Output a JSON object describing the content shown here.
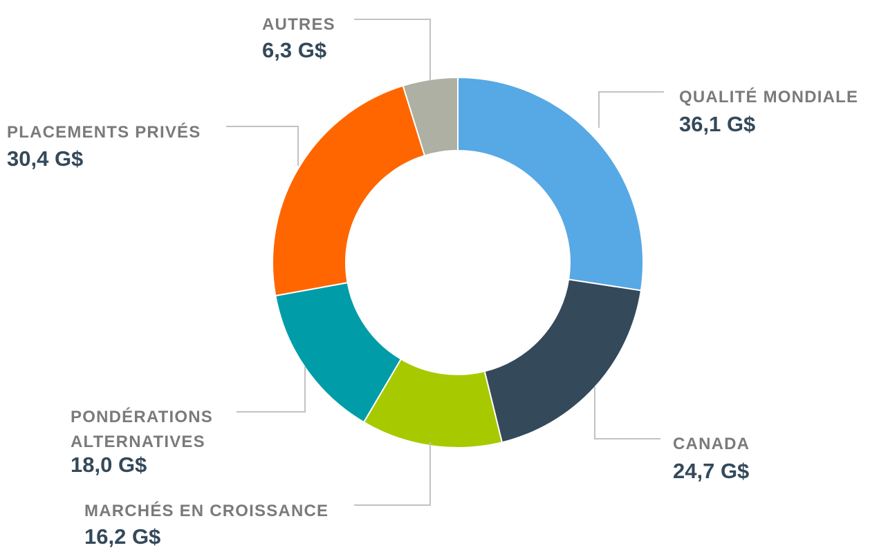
{
  "chart_data": {
    "type": "pie",
    "variant": "donut",
    "title": "",
    "legend": "none",
    "slices": [
      {
        "label": "QUALITÉ MONDIALE",
        "value": 36.1,
        "value_label": "36,1 G$",
        "color": "#56a9e4"
      },
      {
        "label": "CANADA",
        "value": 24.7,
        "value_label": "24,7 G$",
        "color": "#34495a"
      },
      {
        "label": "MARCHÉS EN CROISSANCE",
        "value": 16.2,
        "value_label": "16,2 G$",
        "color": "#a7c900"
      },
      {
        "label": "PONDÉRATIONS ALTERNATIVES",
        "label_lines": [
          "PONDÉRATIONS",
          "ALTERNATIVES"
        ],
        "value": 18.0,
        "value_label": "18,0 G$",
        "color": "#009ca8"
      },
      {
        "label": "PLACEMENTS PRIVÉS",
        "value": 30.4,
        "value_label": "30,4 G$",
        "color": "#ff6600"
      },
      {
        "label": "AUTRES",
        "value": 6.3,
        "value_label": "6,3 G$",
        "color": "#adb0a2"
      }
    ]
  }
}
